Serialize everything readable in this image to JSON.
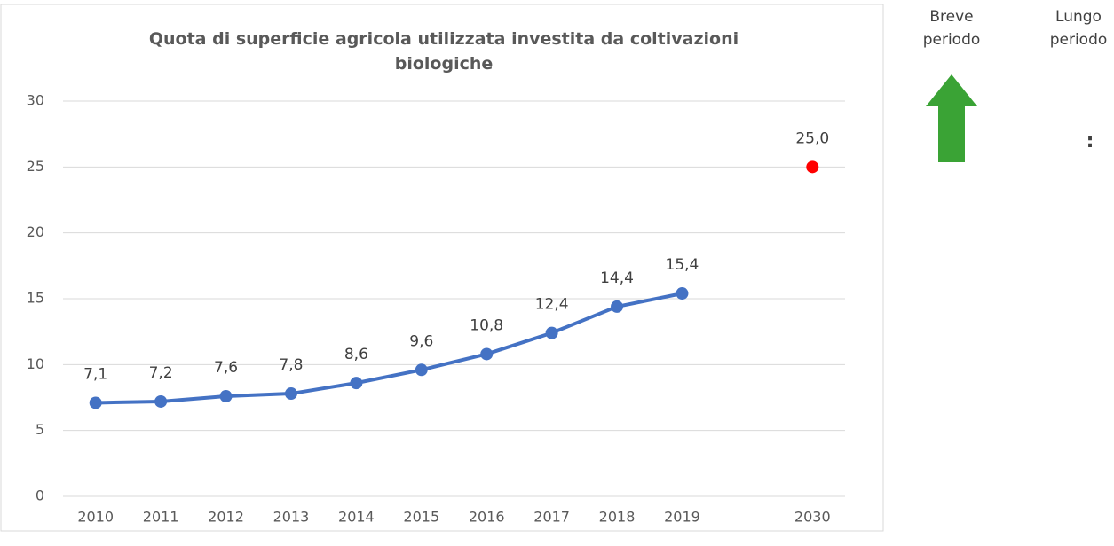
{
  "chart_data": {
    "type": "line",
    "title": "Quota di superficie agricola utilizzata investita da coltivazioni biologiche",
    "categories": [
      "2010",
      "2011",
      "2012",
      "2013",
      "2014",
      "2015",
      "2016",
      "2017",
      "2018",
      "2019",
      null,
      "2030"
    ],
    "series": [
      {
        "color": "#4472c4",
        "values": [
          7.1,
          7.2,
          7.6,
          7.8,
          8.6,
          9.6,
          10.8,
          12.4,
          14.4,
          15.4,
          null,
          null
        ],
        "value_labels": [
          "7,1",
          "7,2",
          "7,6",
          "7,8",
          "8,6",
          "9,6",
          "10,8",
          "12,4",
          "14,4",
          "15,4",
          null,
          null
        ]
      },
      {
        "color": "#ff0000",
        "values": [
          null,
          null,
          null,
          null,
          null,
          null,
          null,
          null,
          null,
          null,
          null,
          25.0
        ],
        "value_labels": [
          null,
          null,
          null,
          null,
          null,
          null,
          null,
          null,
          null,
          null,
          null,
          "25,0"
        ]
      }
    ],
    "ylim": [
      0,
      30
    ],
    "yticks": [
      0,
      5,
      10,
      15,
      20,
      25,
      30
    ],
    "grid": true
  },
  "side_panel": {
    "short_term": "Breve periodo",
    "long_term": "Lungo periodo",
    "short_term_trend_color": "#3aa335",
    "long_term_mark": ":"
  }
}
